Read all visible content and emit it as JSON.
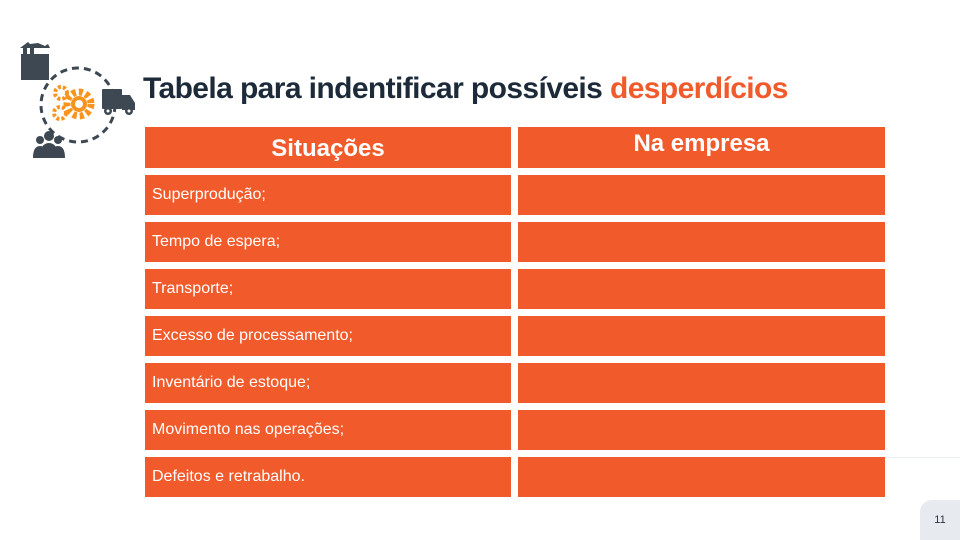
{
  "title": {
    "prefix": "Tabela para indentificar possíveis ",
    "accent": "desperdícios"
  },
  "table": {
    "headers": [
      "Situações",
      "Na empresa"
    ],
    "rows": [
      {
        "situation": "Superprodução;",
        "company": ""
      },
      {
        "situation": "Tempo de espera;",
        "company": ""
      },
      {
        "situation": "Transporte;",
        "company": ""
      },
      {
        "situation": "Excesso de processamento;",
        "company": ""
      },
      {
        "situation": "Inventário de estoque;",
        "company": ""
      },
      {
        "situation": "Movimento nas operações;",
        "company": ""
      },
      {
        "situation": "Defeitos e retrabalho.",
        "company": ""
      }
    ]
  },
  "page_number": "11",
  "colors": {
    "accent": "#f15a2b",
    "dark": "#1c2a3a",
    "gear": "#f7941d",
    "icon": "#3d4853"
  }
}
